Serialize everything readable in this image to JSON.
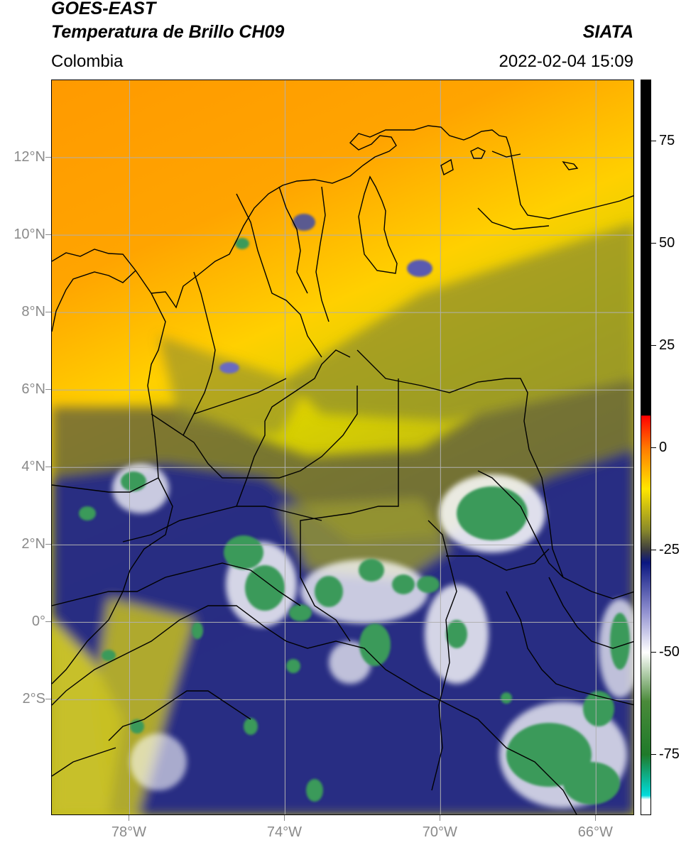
{
  "header": {
    "satellite": "GOES-EAST",
    "product": "Temperatura de Brillo CH09",
    "institution": "SIATA",
    "region": "Colombia",
    "datetime": "2022-02-04 15:09"
  },
  "map": {
    "lon_range": [
      -80.0,
      -65.0
    ],
    "lat_range": [
      -5.0,
      14.0
    ],
    "gridlines": true,
    "grid_color": "#b0b0b0",
    "boundary_color": "#000000",
    "lat_ticks": [
      {
        "value": 12,
        "label": "12°N"
      },
      {
        "value": 10,
        "label": "10°N"
      },
      {
        "value": 8,
        "label": "8°N"
      },
      {
        "value": 6,
        "label": "6°N"
      },
      {
        "value": 4,
        "label": "4°N"
      },
      {
        "value": 2,
        "label": "2°N"
      },
      {
        "value": 0,
        "label": "0°"
      },
      {
        "value": -2,
        "label": "2°S"
      }
    ],
    "lon_ticks": [
      {
        "value": -78,
        "label": "78°W"
      },
      {
        "value": -74,
        "label": "74°W"
      },
      {
        "value": -70,
        "label": "70°W"
      },
      {
        "value": -66,
        "label": "66°W"
      }
    ]
  },
  "colorbar": {
    "range": [
      -90,
      90
    ],
    "ticks": [
      {
        "value": 75,
        "label": "75"
      },
      {
        "value": 50,
        "label": "50"
      },
      {
        "value": 25,
        "label": "25"
      },
      {
        "value": 0,
        "label": "0"
      },
      {
        "value": -25,
        "label": "-25"
      },
      {
        "value": -50,
        "label": "-50"
      },
      {
        "value": -75,
        "label": "-75"
      }
    ],
    "stops": [
      {
        "value": 90,
        "color": "#000000"
      },
      {
        "value": 8,
        "color": "#000000"
      },
      {
        "value": 7.9,
        "color": "#ff0000"
      },
      {
        "value": 0,
        "color": "#ff7a00"
      },
      {
        "value": -10,
        "color": "#ffe600"
      },
      {
        "value": -20,
        "color": "#8a8a2a"
      },
      {
        "value": -25,
        "color": "#3a3a40"
      },
      {
        "value": -28,
        "color": "#0a1680"
      },
      {
        "value": -40,
        "color": "#9090d0"
      },
      {
        "value": -50,
        "color": "#ffffff"
      },
      {
        "value": -62,
        "color": "#4a8a3a"
      },
      {
        "value": -75,
        "color": "#1f7a2a"
      },
      {
        "value": -85,
        "color": "#00dcdc"
      },
      {
        "value": -86,
        "color": "#ffffff"
      },
      {
        "value": -90,
        "color": "#ffffff"
      }
    ]
  }
}
